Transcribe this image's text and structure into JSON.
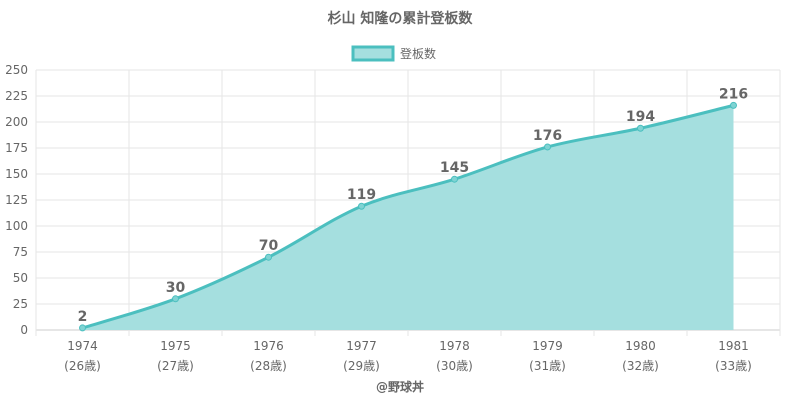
{
  "chart_data": {
    "type": "area",
    "title": "杉山 知隆の累計登板数",
    "categories": [
      "1974",
      "1975",
      "1976",
      "1977",
      "1978",
      "1979",
      "1980",
      "1981"
    ],
    "category_sublabels": [
      "(26歳)",
      "(27歳)",
      "(28歳)",
      "(29歳)",
      "(30歳)",
      "(31歳)",
      "(32歳)",
      "(33歳)"
    ],
    "series": [
      {
        "name": "登板数",
        "values": [
          2,
          30,
          70,
          119,
          145,
          176,
          194,
          216
        ]
      }
    ],
    "ylim": [
      0,
      250
    ],
    "yticks": [
      0,
      25,
      50,
      75,
      100,
      125,
      150,
      175,
      200,
      225,
      250
    ],
    "grid": true,
    "legend_position": "top",
    "colors": {
      "line": "#4bbfbf",
      "fill": "#a5dfdf",
      "point": "#7fd3d3"
    }
  },
  "footer": "@野球丼"
}
